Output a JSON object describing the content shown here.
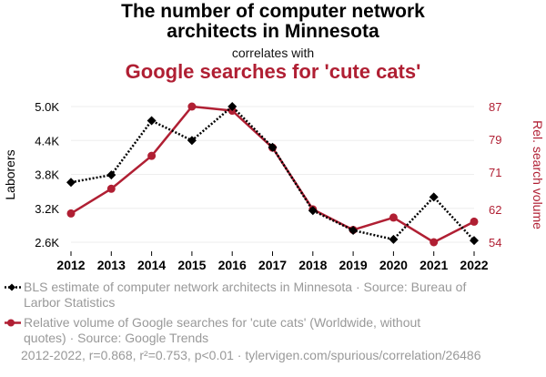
{
  "header": {
    "title_line1": "The number of computer network",
    "title_line2": "architects in Minnesota",
    "correlates": "correlates with",
    "subtitle": "Google searches for 'cute cats'"
  },
  "colors": {
    "series1": "#000000",
    "series2": "#b01f33",
    "muted_text": "#999999"
  },
  "chart_data": {
    "type": "line",
    "x": [
      2012,
      2013,
      2014,
      2015,
      2016,
      2017,
      2018,
      2019,
      2020,
      2021,
      2022
    ],
    "x_ticks": [
      "2012",
      "2013",
      "2014",
      "2015",
      "2016",
      "2017",
      "2018",
      "2019",
      "2020",
      "2021",
      "2022"
    ],
    "y_left": {
      "label": "Laborers",
      "range": [
        2600,
        5000
      ],
      "ticks": [
        2600,
        3200,
        3800,
        4400,
        5000
      ],
      "tick_labels": [
        "2.6K",
        "3.2K",
        "3.8K",
        "4.4K",
        "5.0K"
      ]
    },
    "y_right": {
      "label": "Rel. search volume",
      "range": [
        54,
        87
      ],
      "ticks": [
        54,
        62,
        71,
        79,
        87
      ],
      "tick_labels": [
        "54",
        "62",
        "71",
        "79",
        "87"
      ]
    },
    "series": [
      {
        "name": "BLS estimate of computer network architects in Minnesota",
        "axis": "left",
        "style": "dotted",
        "marker": "diamond",
        "values": [
          3660,
          3790,
          4750,
          4400,
          5000,
          4280,
          3160,
          2810,
          2650,
          3400,
          2630
        ]
      },
      {
        "name": "Relative volume of Google searches for 'cute cats' (Worldwide, without quotes)",
        "axis": "right",
        "style": "solid",
        "marker": "circle",
        "values": [
          61,
          67,
          75,
          87,
          86,
          77,
          62,
          57,
          60,
          54,
          59
        ]
      }
    ]
  },
  "legend": {
    "series1_line1": "BLS estimate of computer network architects in Minnesota · Source: Bureau of",
    "series1_line2": "Larbor Statistics",
    "series2_line1": "Relative volume of Google searches for 'cute cats' (Worldwide, without",
    "series2_line2": "quotes) · Source: Google Trends"
  },
  "footer": "2012-2022, r=0.868, r²=0.753, p<0.01 · tylervigen.com/spurious/correlation/26486"
}
